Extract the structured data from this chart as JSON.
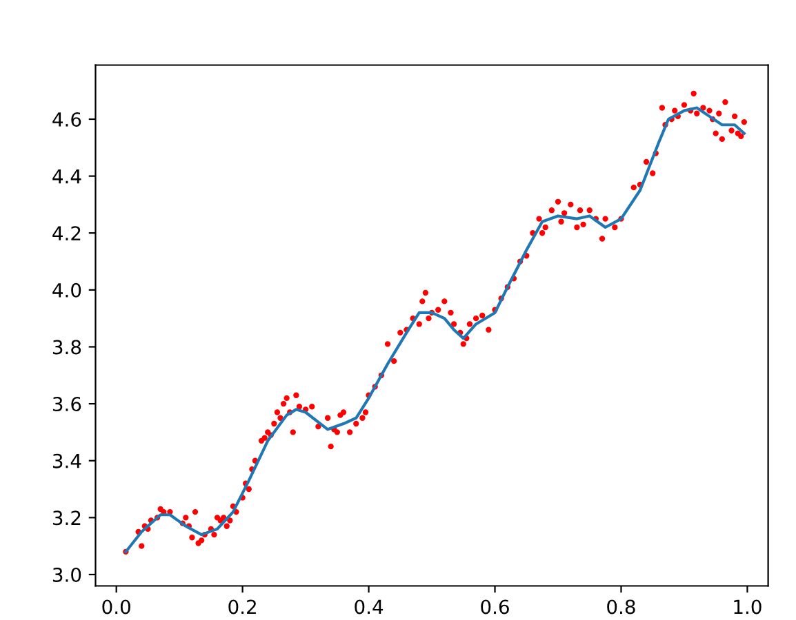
{
  "chart_data": {
    "type": "scatter",
    "xlim": [
      -0.033,
      1.033
    ],
    "ylim": [
      2.96,
      4.79
    ],
    "xticks": [
      {
        "value": 0,
        "label": "0.0"
      },
      0.2,
      0.4,
      0.6,
      0.8,
      {
        "value": 1,
        "label": "1.0"
      }
    ],
    "yticks": [
      {
        "value": 3,
        "label": "3.0"
      },
      3.2,
      3.4,
      3.6,
      3.8,
      {
        "value": 4,
        "label": "4.0"
      },
      4.2,
      4.4,
      4.6
    ],
    "grid": false,
    "legend": false,
    "series": [
      {
        "color": "#ff0000",
        "marker": "circle",
        "x": [
          0.015,
          0.035,
          0.04,
          0.045,
          0.05,
          0.055,
          0.065,
          0.07,
          0.075,
          0.085,
          0.105,
          0.11,
          0.115,
          0.12,
          0.125,
          0.13,
          0.135,
          0.14,
          0.15,
          0.155,
          0.16,
          0.165,
          0.17,
          0.175,
          0.18,
          0.185,
          0.19,
          0.2,
          0.205,
          0.21,
          0.215,
          0.22,
          0.23,
          0.235,
          0.24,
          0.245,
          0.25,
          0.255,
          0.26,
          0.265,
          0.27,
          0.275,
          0.28,
          0.285,
          0.29,
          0.3,
          0.31,
          0.32,
          0.335,
          0.34,
          0.345,
          0.35,
          0.355,
          0.36,
          0.37,
          0.38,
          0.39,
          0.395,
          0.4,
          0.41,
          0.42,
          0.43,
          0.44,
          0.45,
          0.46,
          0.47,
          0.48,
          0.485,
          0.49,
          0.495,
          0.5,
          0.51,
          0.52,
          0.53,
          0.535,
          0.545,
          0.55,
          0.555,
          0.56,
          0.57,
          0.58,
          0.59,
          0.6,
          0.61,
          0.62,
          0.63,
          0.64,
          0.65,
          0.66,
          0.67,
          0.675,
          0.68,
          0.69,
          0.7,
          0.705,
          0.71,
          0.72,
          0.73,
          0.735,
          0.74,
          0.75,
          0.76,
          0.77,
          0.775,
          0.79,
          0.8,
          0.82,
          0.83,
          0.84,
          0.85,
          0.855,
          0.865,
          0.87,
          0.88,
          0.885,
          0.89,
          0.9,
          0.91,
          0.915,
          0.92,
          0.93,
          0.94,
          0.945,
          0.95,
          0.955,
          0.96,
          0.965,
          0.975,
          0.98,
          0.985,
          0.99,
          0.995
        ],
        "values": [
          3.08,
          3.15,
          3.1,
          3.17,
          3.16,
          3.19,
          3.2,
          3.23,
          3.22,
          3.22,
          3.18,
          3.2,
          3.17,
          3.13,
          3.22,
          3.11,
          3.12,
          3.14,
          3.16,
          3.14,
          3.2,
          3.19,
          3.2,
          3.17,
          3.19,
          3.24,
          3.22,
          3.27,
          3.32,
          3.3,
          3.37,
          3.4,
          3.47,
          3.48,
          3.5,
          3.49,
          3.53,
          3.57,
          3.55,
          3.6,
          3.62,
          3.57,
          3.5,
          3.63,
          3.59,
          3.58,
          3.59,
          3.52,
          3.55,
          3.45,
          3.51,
          3.5,
          3.56,
          3.57,
          3.5,
          3.53,
          3.55,
          3.57,
          3.63,
          3.66,
          3.7,
          3.81,
          3.75,
          3.85,
          3.86,
          3.9,
          3.88,
          3.96,
          3.99,
          3.9,
          3.92,
          3.93,
          3.96,
          3.92,
          3.88,
          3.85,
          3.81,
          3.83,
          3.88,
          3.9,
          3.91,
          3.86,
          3.93,
          3.97,
          4.01,
          4.04,
          4.1,
          4.12,
          4.2,
          4.25,
          4.2,
          4.22,
          4.28,
          4.31,
          4.24,
          4.27,
          4.3,
          4.22,
          4.28,
          4.23,
          4.28,
          4.25,
          4.18,
          4.25,
          4.22,
          4.25,
          4.36,
          4.37,
          4.45,
          4.41,
          4.48,
          4.64,
          4.58,
          4.6,
          4.63,
          4.61,
          4.65,
          4.63,
          4.69,
          4.62,
          4.64,
          4.63,
          4.6,
          4.55,
          4.62,
          4.53,
          4.66,
          4.56,
          4.61,
          4.55,
          4.54,
          4.59
        ]
      },
      {
        "type": "line",
        "color": "#1f77b4",
        "marker": "none",
        "line_style": "solid",
        "x": [
          0.015,
          0.04,
          0.07,
          0.085,
          0.11,
          0.135,
          0.16,
          0.185,
          0.21,
          0.24,
          0.27,
          0.285,
          0.3,
          0.335,
          0.36,
          0.38,
          0.4,
          0.43,
          0.46,
          0.48,
          0.5,
          0.52,
          0.535,
          0.55,
          0.57,
          0.6,
          0.62,
          0.65,
          0.675,
          0.7,
          0.73,
          0.75,
          0.775,
          0.8,
          0.83,
          0.86,
          0.875,
          0.9,
          0.92,
          0.94,
          0.96,
          0.98,
          0.995
        ],
        "values": [
          3.08,
          3.15,
          3.21,
          3.21,
          3.17,
          3.14,
          3.16,
          3.22,
          3.33,
          3.47,
          3.56,
          3.58,
          3.57,
          3.51,
          3.53,
          3.55,
          3.62,
          3.74,
          3.85,
          3.92,
          3.92,
          3.9,
          3.86,
          3.83,
          3.88,
          3.92,
          4.01,
          4.14,
          4.24,
          4.26,
          4.25,
          4.26,
          4.22,
          4.25,
          4.35,
          4.52,
          4.6,
          4.63,
          4.64,
          4.61,
          4.58,
          4.58,
          4.55
        ]
      }
    ]
  }
}
